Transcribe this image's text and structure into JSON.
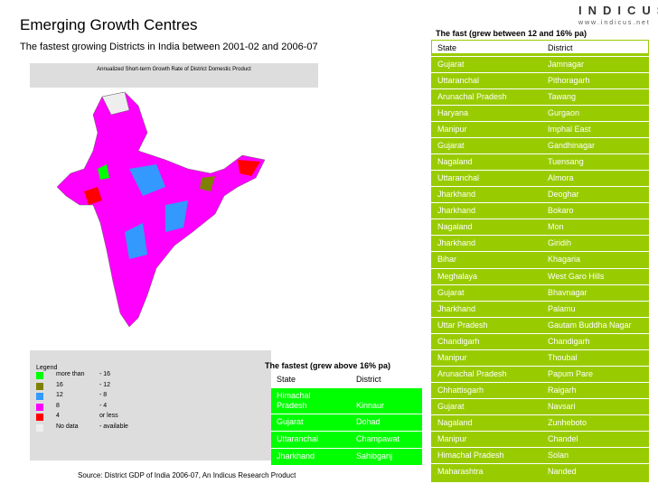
{
  "header": {
    "title": "Emerging Growth Centres",
    "subtitle": "The fastest growing Districts in India between 2001-02 and 2006-07"
  },
  "logo": {
    "name": "INDICUS",
    "url": "w w w . i n d i c u s . n e t"
  },
  "map": {
    "title": "Annualized Short-term Growth Rate of District Domestic Product",
    "legend": {
      "title": "Legend",
      "items": [
        [
          "more than",
          "- 16"
        ],
        [
          "16",
          "- 12"
        ],
        [
          "12",
          "- 8"
        ],
        [
          "8",
          "- 4"
        ],
        [
          "4",
          "or less"
        ],
        [
          "No data",
          "- available"
        ]
      ]
    }
  },
  "source": "Source: District GDP of India 2006-07, An Indicus Research Product",
  "table_fast": {
    "title": "The fast (grew between 12 and 16% pa)",
    "header": [
      "State",
      "District"
    ],
    "rows": [
      [
        "Gujarat",
        "Jamnagar"
      ],
      [
        "Uttaranchal",
        "Pithoragarh"
      ],
      [
        "Arunachal Pradesh",
        "Tawang"
      ],
      [
        "Haryana",
        "Gurgaon"
      ],
      [
        "Manipur",
        "Imphal East"
      ],
      [
        "Gujarat",
        "Gandhinagar"
      ],
      [
        "Nagaland",
        "Tuensang"
      ],
      [
        "Uttaranchal",
        "Almora"
      ],
      [
        "Jharkhand",
        "Deoghar"
      ],
      [
        "Jharkhand",
        "Bokaro"
      ],
      [
        "Nagaland",
        "Mon"
      ],
      [
        "Jharkhand",
        "Giridih"
      ],
      [
        "Bihar",
        "Khagaria"
      ],
      [
        "Meghalaya",
        "West Garo Hills"
      ],
      [
        "Gujarat",
        "Bhavnagar"
      ],
      [
        "Jharkhand",
        "Palamu"
      ],
      [
        "Uttar Pradesh",
        "Gautam Buddha Nagar"
      ],
      [
        "Chandigarh",
        "Chandigarh"
      ],
      [
        "Manipur",
        "Thoubal"
      ],
      [
        "Arunachal Pradesh",
        "Papum Pare"
      ],
      [
        "Chhattisgarh",
        "Raigarh"
      ],
      [
        "Gujarat",
        "Navsari"
      ],
      [
        "Nagaland",
        "Zunheboto"
      ],
      [
        "Manipur",
        "Chandel"
      ],
      [
        "Himachal Pradesh",
        "Solan"
      ],
      [
        "Maharashtra",
        "Nanded"
      ]
    ]
  },
  "table_fastest": {
    "title": "The fastest (grew above 16% pa)",
    "header": [
      "State",
      "District"
    ],
    "rows": [
      [
        "Himachal Pradesh",
        "Kinnaur"
      ],
      [
        "Gujarat",
        "Dohad"
      ],
      [
        "Uttaranchal",
        "Champawat"
      ],
      [
        "Jharkhand",
        "Sahibganj"
      ]
    ]
  }
}
